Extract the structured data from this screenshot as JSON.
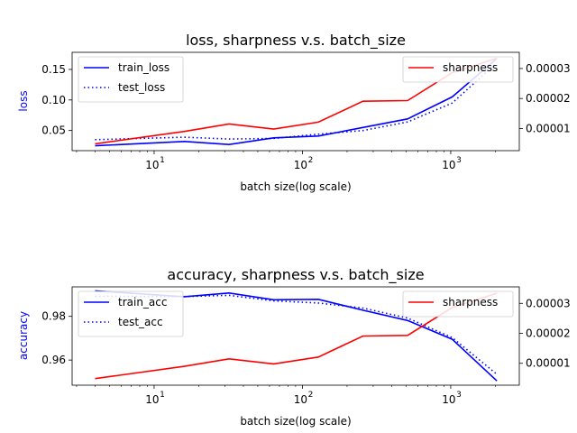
{
  "chart_data": [
    {
      "type": "line",
      "title": "loss, sharpness v.s. batch_size",
      "xlabel": "batch size(log scale)",
      "ylabel": "loss",
      "ylabel_color": "#0000ff",
      "x_scale": "log",
      "x": [
        4,
        16,
        32,
        64,
        128,
        256,
        512,
        1024,
        2048
      ],
      "xlim": [
        2.8,
        2900
      ],
      "x_ticks": [
        {
          "value": 10,
          "label": "10",
          "exp": "1"
        },
        {
          "value": 100,
          "label": "10",
          "exp": "2"
        },
        {
          "value": 1000,
          "label": "10",
          "exp": "3"
        }
      ],
      "ylim": [
        0.017,
        0.178
      ],
      "y_ticks": [
        "0.05",
        "0.10",
        "0.15"
      ],
      "y_tick_values": [
        0.05,
        0.1,
        0.15
      ],
      "series": [
        {
          "name": "train_loss",
          "axis": "left",
          "color": "#0000ff",
          "style": "solid",
          "values": [
            0.025,
            0.032,
            0.027,
            0.038,
            0.041,
            0.055,
            0.069,
            0.105,
            0.168
          ]
        },
        {
          "name": "test_loss",
          "axis": "left",
          "color": "#0000ff",
          "style": "dotted",
          "values": [
            0.035,
            0.039,
            0.036,
            0.037,
            0.044,
            0.05,
            0.064,
            0.095,
            0.161
          ]
        }
      ],
      "y2lim": [
        2.6e-06,
        3.54e-05
      ],
      "y2_ticks": [
        "0.00001",
        "0.00002",
        "0.00003"
      ],
      "y2_tick_values": [
        1e-05,
        2e-05,
        3e-05
      ],
      "series2": [
        {
          "name": "sharpness",
          "axis": "right",
          "color": "#ff0000",
          "style": "solid",
          "values": [
            4.9e-06,
            9e-06,
            1.15e-05,
            9.8e-06,
            1.21e-05,
            1.91e-05,
            1.93e-05,
            2.86e-05,
            3.34e-05
          ]
        }
      ],
      "legend_left_placement": "top-left",
      "legend_right_placement": "top-right"
    },
    {
      "type": "line",
      "title": "accuracy, sharpness v.s. batch_size",
      "xlabel": "batch size(log scale)",
      "ylabel": "accuracy",
      "ylabel_color": "#0000ff",
      "x_scale": "log",
      "x": [
        4,
        16,
        32,
        64,
        128,
        256,
        512,
        1024,
        2048
      ],
      "xlim": [
        2.8,
        2900
      ],
      "x_ticks": [
        {
          "value": 10,
          "label": "10",
          "exp": "1"
        },
        {
          "value": 100,
          "label": "10",
          "exp": "2"
        },
        {
          "value": 1000,
          "label": "10",
          "exp": "3"
        }
      ],
      "ylim": [
        0.9485,
        0.9935
      ],
      "y_ticks": [
        "0.96",
        "0.98"
      ],
      "y_tick_values": [
        0.96,
        0.98
      ],
      "series": [
        {
          "name": "train_acc",
          "axis": "left",
          "color": "#0000ff",
          "style": "solid",
          "values": [
            0.9917,
            0.989,
            0.9907,
            0.9876,
            0.9878,
            0.9828,
            0.9781,
            0.9695,
            0.9505
          ]
        },
        {
          "name": "test_acc",
          "axis": "left",
          "color": "#0000ff",
          "style": "dotted",
          "values": [
            0.9892,
            0.9891,
            0.9896,
            0.9871,
            0.9861,
            0.9838,
            0.9792,
            0.9703,
            0.9535
          ]
        }
      ],
      "y2lim": [
        2.7e-06,
        3.55e-05
      ],
      "y2_ticks": [
        "0.00001",
        "0.00002",
        "0.00003"
      ],
      "y2_tick_values": [
        1e-05,
        2e-05,
        3e-05
      ],
      "series2": [
        {
          "name": "sharpness",
          "axis": "right",
          "color": "#ff0000",
          "style": "solid",
          "values": [
            4.9e-06,
            9e-06,
            1.15e-05,
            9.8e-06,
            1.21e-05,
            1.91e-05,
            1.93e-05,
            2.86e-05,
            3.34e-05
          ]
        }
      ],
      "legend_left_placement": "top-left",
      "legend_right_placement": "top-right"
    }
  ]
}
